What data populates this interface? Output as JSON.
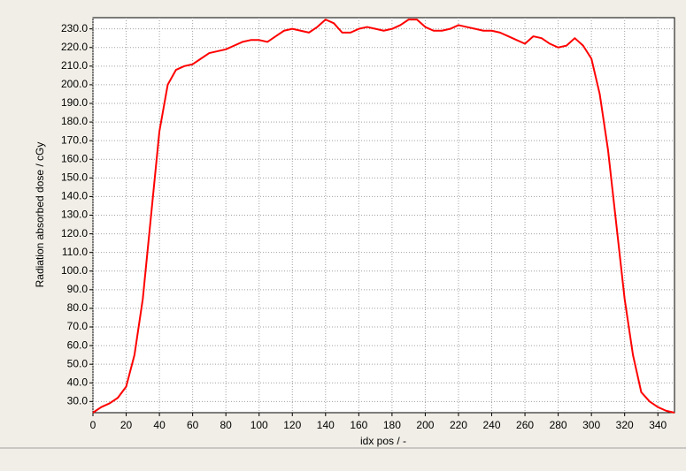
{
  "chart_data": {
    "type": "line",
    "x_label": "idx pos / -",
    "y_label": "Radiation absorbed dose / cGy",
    "x": [
      0,
      5,
      10,
      15,
      20,
      25,
      30,
      35,
      40,
      45,
      50,
      55,
      60,
      65,
      70,
      75,
      80,
      85,
      90,
      95,
      100,
      105,
      110,
      115,
      120,
      125,
      130,
      135,
      140,
      145,
      150,
      155,
      160,
      165,
      170,
      175,
      180,
      185,
      190,
      195,
      200,
      205,
      210,
      215,
      220,
      225,
      230,
      235,
      240,
      245,
      250,
      255,
      260,
      265,
      270,
      275,
      280,
      285,
      290,
      295,
      300,
      305,
      310,
      315,
      320,
      325,
      330,
      335,
      340,
      345,
      350
    ],
    "series": [
      {
        "color": "#ff0000",
        "values": [
          24,
          27,
          29,
          32,
          38,
          55,
          85,
          130,
          175,
          200,
          208,
          210,
          211,
          214,
          217,
          218,
          219,
          221,
          223,
          224,
          224,
          223,
          226,
          229,
          230,
          229,
          228,
          231,
          235,
          233,
          228,
          228,
          230,
          231,
          230,
          229,
          230,
          232,
          235,
          235,
          231,
          229,
          229,
          230,
          232,
          231,
          230,
          229,
          229,
          228,
          226,
          224,
          222,
          226,
          225,
          222,
          220,
          221,
          225,
          221,
          214,
          195,
          165,
          125,
          85,
          55,
          35,
          30,
          27,
          25,
          24
        ]
      }
    ],
    "xlim": [
      0,
      350
    ],
    "ylim": [
      24,
      236
    ],
    "xticks": [
      0,
      20,
      40,
      60,
      80,
      100,
      120,
      140,
      160,
      180,
      200,
      220,
      240,
      260,
      280,
      300,
      320,
      340
    ],
    "yticks": [
      {
        "value": 30,
        "label": "30.0"
      },
      {
        "value": 40,
        "label": "40.0"
      },
      {
        "value": 50,
        "label": "50.0"
      },
      {
        "value": 60,
        "label": "60.0"
      },
      {
        "value": 70,
        "label": "70.0"
      },
      {
        "value": 80,
        "label": "80.0"
      },
      {
        "value": 90,
        "label": "90.0"
      },
      {
        "value": 100,
        "label": "100.0"
      },
      {
        "value": 110,
        "label": "110.0"
      },
      {
        "value": 120,
        "label": "120.0"
      },
      {
        "value": 130,
        "label": "130.0"
      },
      {
        "value": 140,
        "label": "140.0"
      },
      {
        "value": 150,
        "label": "150.0"
      },
      {
        "value": 160,
        "label": "160.0"
      },
      {
        "value": 170,
        "label": "170.0"
      },
      {
        "value": 180,
        "label": "180.0"
      },
      {
        "value": 190,
        "label": "190.0"
      },
      {
        "value": 200,
        "label": "200.0"
      },
      {
        "value": 210,
        "label": "210.0"
      },
      {
        "value": 220,
        "label": "220.0"
      },
      {
        "value": 230,
        "label": "230.0"
      }
    ],
    "grid": true
  }
}
